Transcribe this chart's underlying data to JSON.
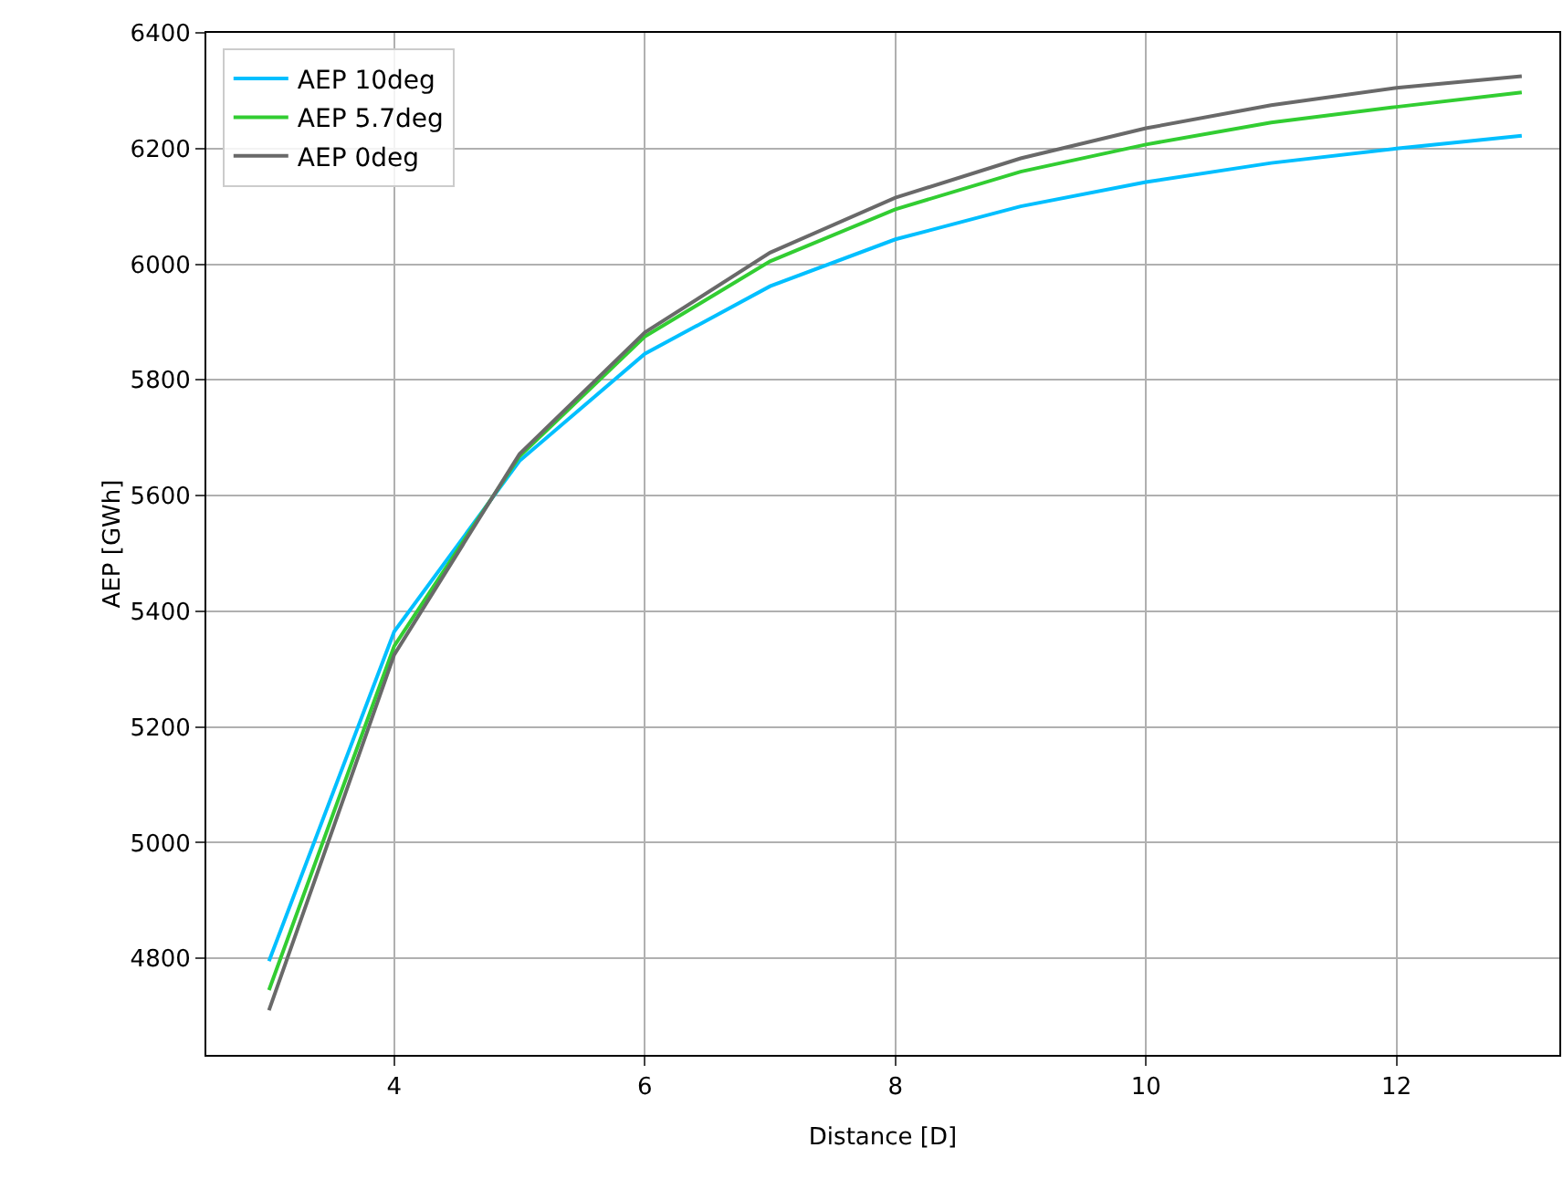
{
  "chart_data": {
    "type": "line",
    "xlabel": "Distance [D]",
    "ylabel": "AEP [GWh]",
    "x": [
      3,
      4,
      5,
      6,
      7,
      8,
      9,
      10,
      11,
      12,
      13
    ],
    "series": [
      {
        "name": "AEP 10deg",
        "color": "#00bfff",
        "values": [
          4795,
          5365,
          5660,
          5845,
          5962,
          6043,
          6100,
          6142,
          6175,
          6200,
          6222
        ]
      },
      {
        "name": "AEP 5.7deg",
        "color": "#32cd32",
        "values": [
          4745,
          5340,
          5668,
          5875,
          6005,
          6095,
          6160,
          6207,
          6245,
          6272,
          6297
        ]
      },
      {
        "name": "AEP 0deg",
        "color": "#696969",
        "values": [
          4710,
          5325,
          5672,
          5882,
          6020,
          6115,
          6183,
          6235,
          6275,
          6305,
          6325
        ]
      }
    ],
    "xlim": [
      2.5,
      13.3
    ],
    "xticks": [
      4,
      6,
      8,
      10,
      12
    ],
    "ylim": [
      4633,
      6400
    ],
    "yticks": [
      4800,
      5000,
      5200,
      5400,
      5600,
      5800,
      6000,
      6200,
      6400
    ],
    "grid": true,
    "legend": "top left",
    "marker": "none",
    "line_style": "solid"
  }
}
